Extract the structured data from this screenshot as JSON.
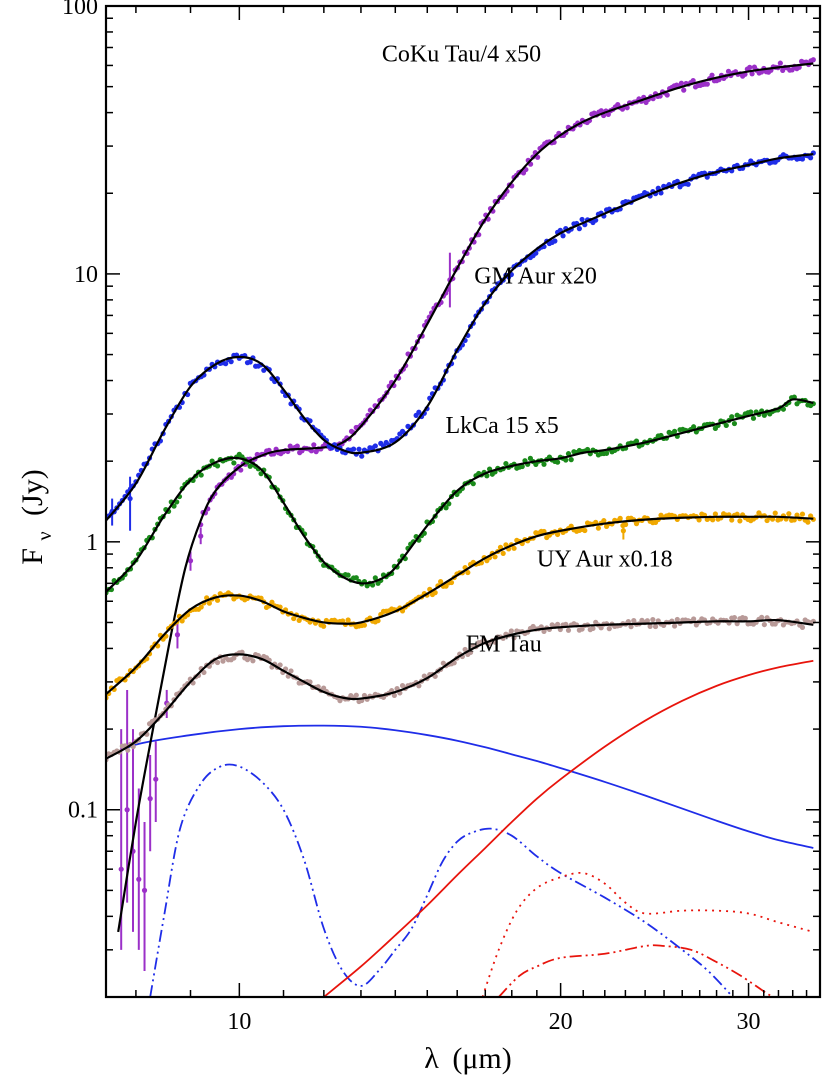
{
  "chart_data": {
    "type": "line",
    "xscale": "log",
    "yscale": "log",
    "xlim": [
      7.5,
      35
    ],
    "ylim": [
      0.02,
      100
    ],
    "xlabel": {
      "symbol": "λ",
      "unit": "(μm)"
    },
    "ylabel": {
      "symbol": "F",
      "subscript": "ν",
      "unit": "(Jy)"
    },
    "x_ticks": [
      {
        "value": 10,
        "label": "10"
      },
      {
        "value": 20,
        "label": "20"
      },
      {
        "value": 30,
        "label": "30"
      }
    ],
    "y_ticks": [
      {
        "value": 0.1,
        "label": "0.1"
      },
      {
        "value": 1,
        "label": "1"
      },
      {
        "value": 10,
        "label": "10"
      },
      {
        "value": 100,
        "label": "100"
      }
    ],
    "annotations": [
      {
        "text": "CoKu Tau/4 x50",
        "x": 13.6,
        "y": 62
      },
      {
        "text": "GM Aur x20",
        "x": 16.6,
        "y": 9.2
      },
      {
        "text": "LkCa 15 x5",
        "x": 15.6,
        "y": 2.55
      },
      {
        "text": "UY Aur x0.18",
        "x": 19.0,
        "y": 0.81
      },
      {
        "text": "FM Tau",
        "x": 16.3,
        "y": 0.39
      }
    ],
    "series": [
      {
        "name": "CoKu Tau/4 x50",
        "color": "#9b30c8",
        "model": [
          [
            7.7,
            0.035
          ],
          [
            8.0,
            0.09
          ],
          [
            8.3,
            0.2
          ],
          [
            8.6,
            0.42
          ],
          [
            8.9,
            0.8
          ],
          [
            9.2,
            1.2
          ],
          [
            9.5,
            1.55
          ],
          [
            10.0,
            1.9
          ],
          [
            10.5,
            2.1
          ],
          [
            11.0,
            2.2
          ],
          [
            12.0,
            2.25
          ],
          [
            12.5,
            2.35
          ],
          [
            13.0,
            2.7
          ],
          [
            14.0,
            4.0
          ],
          [
            15.0,
            6.5
          ],
          [
            16.0,
            10.5
          ],
          [
            17.0,
            16
          ],
          [
            18.0,
            22
          ],
          [
            19.0,
            28
          ],
          [
            20.0,
            33
          ],
          [
            21.0,
            37
          ],
          [
            22.0,
            40
          ],
          [
            24.0,
            45
          ],
          [
            26.0,
            50
          ],
          [
            28.0,
            54
          ],
          [
            30.0,
            57
          ],
          [
            32.0,
            59
          ],
          [
            34.5,
            61
          ]
        ],
        "errorbars": [
          [
            7.75,
            0.06,
            0.03,
            0.2
          ],
          [
            7.85,
            0.1,
            0.045,
            0.28
          ],
          [
            7.95,
            0.07,
            0.035,
            0.2
          ],
          [
            8.05,
            0.055,
            0.03,
            0.12
          ],
          [
            8.15,
            0.05,
            0.025,
            0.09
          ],
          [
            8.25,
            0.11,
            0.07,
            0.16
          ],
          [
            8.35,
            0.13,
            0.09,
            0.18
          ],
          [
            8.55,
            0.25,
            0.22,
            0.28
          ],
          [
            8.75,
            0.45,
            0.4,
            0.5
          ],
          [
            9.0,
            0.85,
            0.78,
            0.92
          ],
          [
            9.2,
            1.05,
            0.98,
            1.13
          ],
          [
            15.75,
            9.5,
            7.5,
            12.0
          ]
        ]
      },
      {
        "name": "GM Aur x20",
        "color": "#1f2de8",
        "model": [
          [
            7.5,
            1.2
          ],
          [
            8.0,
            1.65
          ],
          [
            8.5,
            2.6
          ],
          [
            9.0,
            3.8
          ],
          [
            9.5,
            4.6
          ],
          [
            10.0,
            4.9
          ],
          [
            10.5,
            4.6
          ],
          [
            11.0,
            3.7
          ],
          [
            11.5,
            2.9
          ],
          [
            12.0,
            2.4
          ],
          [
            12.5,
            2.2
          ],
          [
            13.0,
            2.15
          ],
          [
            14.0,
            2.35
          ],
          [
            15.0,
            3.2
          ],
          [
            16.0,
            5.2
          ],
          [
            17.0,
            7.8
          ],
          [
            18.0,
            10.3
          ],
          [
            19.0,
            12.4
          ],
          [
            20.0,
            14.2
          ],
          [
            21.0,
            15.5
          ],
          [
            22.0,
            16.8
          ],
          [
            24.0,
            19.5
          ],
          [
            26.0,
            22
          ],
          [
            28.0,
            24
          ],
          [
            30.0,
            25.5
          ],
          [
            32.0,
            27
          ],
          [
            34.5,
            28
          ]
        ],
        "errorbars": [
          [
            7.6,
            1.3,
            1.15,
            1.45
          ],
          [
            7.9,
            1.45,
            1.1,
            1.75
          ]
        ]
      },
      {
        "name": "LkCa 15 x5",
        "color": "#1a8a1a",
        "model": [
          [
            7.5,
            0.65
          ],
          [
            8.0,
            0.85
          ],
          [
            8.5,
            1.25
          ],
          [
            9.0,
            1.7
          ],
          [
            9.5,
            1.98
          ],
          [
            10.0,
            2.05
          ],
          [
            10.5,
            1.85
          ],
          [
            11.0,
            1.4
          ],
          [
            11.5,
            1.05
          ],
          [
            12.0,
            0.84
          ],
          [
            12.5,
            0.74
          ],
          [
            13.0,
            0.7
          ],
          [
            13.5,
            0.72
          ],
          [
            14.0,
            0.8
          ],
          [
            15.0,
            1.15
          ],
          [
            16.0,
            1.55
          ],
          [
            17.0,
            1.8
          ],
          [
            18.0,
            1.92
          ],
          [
            19.0,
            2.0
          ],
          [
            20.0,
            2.05
          ],
          [
            21.0,
            2.15
          ],
          [
            22.0,
            2.2
          ],
          [
            24.0,
            2.35
          ],
          [
            26.0,
            2.55
          ],
          [
            28.0,
            2.75
          ],
          [
            30.0,
            2.95
          ],
          [
            32.0,
            3.15
          ],
          [
            33.0,
            3.4
          ],
          [
            34.5,
            3.3
          ]
        ],
        "errorbars": []
      },
      {
        "name": "UY Aur x0.18",
        "color": "#f0a800",
        "model": [
          [
            7.5,
            0.27
          ],
          [
            8.0,
            0.34
          ],
          [
            8.5,
            0.45
          ],
          [
            9.0,
            0.56
          ],
          [
            9.5,
            0.62
          ],
          [
            10.0,
            0.63
          ],
          [
            10.5,
            0.6
          ],
          [
            11.0,
            0.55
          ],
          [
            11.5,
            0.52
          ],
          [
            12.0,
            0.5
          ],
          [
            12.5,
            0.495
          ],
          [
            13.0,
            0.5
          ],
          [
            14.0,
            0.55
          ],
          [
            15.0,
            0.64
          ],
          [
            16.0,
            0.75
          ],
          [
            17.0,
            0.87
          ],
          [
            18.0,
            0.97
          ],
          [
            19.0,
            1.05
          ],
          [
            20.0,
            1.1
          ],
          [
            22.0,
            1.17
          ],
          [
            24.0,
            1.21
          ],
          [
            26.0,
            1.23
          ],
          [
            28.0,
            1.24
          ],
          [
            30.0,
            1.24
          ],
          [
            32.0,
            1.24
          ],
          [
            34.5,
            1.22
          ]
        ],
        "errorbars": [
          [
            22.9,
            1.1,
            1.02,
            1.2
          ]
        ]
      },
      {
        "name": "FM Tau",
        "color": "#b89a98",
        "model": [
          [
            7.5,
            0.155
          ],
          [
            8.0,
            0.18
          ],
          [
            8.5,
            0.23
          ],
          [
            9.0,
            0.3
          ],
          [
            9.5,
            0.365
          ],
          [
            10.0,
            0.38
          ],
          [
            10.5,
            0.365
          ],
          [
            11.0,
            0.33
          ],
          [
            11.5,
            0.3
          ],
          [
            12.0,
            0.275
          ],
          [
            12.5,
            0.262
          ],
          [
            13.0,
            0.26
          ],
          [
            14.0,
            0.275
          ],
          [
            15.0,
            0.31
          ],
          [
            16.0,
            0.37
          ],
          [
            17.0,
            0.42
          ],
          [
            18.0,
            0.45
          ],
          [
            19.0,
            0.47
          ],
          [
            20.0,
            0.48
          ],
          [
            22.0,
            0.49
          ],
          [
            24.0,
            0.495
          ],
          [
            26.0,
            0.5
          ],
          [
            28.0,
            0.505
          ],
          [
            30.0,
            0.505
          ],
          [
            32.0,
            0.51
          ],
          [
            34.5,
            0.49
          ]
        ],
        "errorbars": []
      }
    ],
    "components": [
      {
        "name": "blue-solid",
        "color": "#1f2de8",
        "dash": "solid",
        "points": [
          [
            7.5,
            0.155
          ],
          [
            8.0,
            0.175
          ],
          [
            9.0,
            0.19
          ],
          [
            10.0,
            0.2
          ],
          [
            11.0,
            0.205
          ],
          [
            12.0,
            0.206
          ],
          [
            13.0,
            0.204
          ],
          [
            14.0,
            0.198
          ],
          [
            15.0,
            0.19
          ],
          [
            16.0,
            0.181
          ],
          [
            17.0,
            0.171
          ],
          [
            18.0,
            0.161
          ],
          [
            19.0,
            0.152
          ],
          [
            20.0,
            0.143
          ],
          [
            22.0,
            0.127
          ],
          [
            24.0,
            0.113
          ],
          [
            26.0,
            0.101
          ],
          [
            28.0,
            0.091
          ],
          [
            30.0,
            0.083
          ],
          [
            32.0,
            0.077
          ],
          [
            34.5,
            0.072
          ]
        ]
      },
      {
        "name": "blue-dash-dot",
        "color": "#1f2de8",
        "dash": "dashdot",
        "points": [
          [
            8.25,
            0.02
          ],
          [
            8.5,
            0.04
          ],
          [
            8.8,
            0.085
          ],
          [
            9.2,
            0.125
          ],
          [
            9.6,
            0.145
          ],
          [
            10.0,
            0.145
          ],
          [
            10.5,
            0.127
          ],
          [
            11.0,
            0.1
          ],
          [
            11.5,
            0.065
          ],
          [
            12.0,
            0.036
          ],
          [
            12.5,
            0.025
          ],
          [
            13.0,
            0.022
          ],
          [
            13.5,
            0.025
          ],
          [
            14.0,
            0.03
          ],
          [
            14.5,
            0.036
          ],
          [
            15.0,
            0.048
          ],
          [
            15.5,
            0.064
          ],
          [
            16.0,
            0.076
          ],
          [
            16.5,
            0.082
          ],
          [
            17.2,
            0.085
          ],
          [
            18.0,
            0.08
          ],
          [
            19.0,
            0.067
          ],
          [
            20.0,
            0.058
          ],
          [
            22.0,
            0.047
          ],
          [
            24.0,
            0.038
          ],
          [
            26.0,
            0.03
          ],
          [
            27.5,
            0.025
          ],
          [
            29.0,
            0.02
          ]
        ]
      },
      {
        "name": "red-solid",
        "color": "#e8140c",
        "dash": "solid",
        "points": [
          [
            12.0,
            0.02
          ],
          [
            13.0,
            0.026
          ],
          [
            14.0,
            0.034
          ],
          [
            15.0,
            0.044
          ],
          [
            16.0,
            0.057
          ],
          [
            17.0,
            0.072
          ],
          [
            18.0,
            0.09
          ],
          [
            19.0,
            0.11
          ],
          [
            20.0,
            0.13
          ],
          [
            22.0,
            0.172
          ],
          [
            24.0,
            0.215
          ],
          [
            26.0,
            0.255
          ],
          [
            28.0,
            0.29
          ],
          [
            30.0,
            0.318
          ],
          [
            32.0,
            0.34
          ],
          [
            34.5,
            0.36
          ]
        ]
      },
      {
        "name": "red-dotted",
        "color": "#e8140c",
        "dash": "dotted",
        "points": [
          [
            16.9,
            0.02
          ],
          [
            17.5,
            0.03
          ],
          [
            18.2,
            0.042
          ],
          [
            19.0,
            0.051
          ],
          [
            20.0,
            0.056
          ],
          [
            21.0,
            0.058
          ],
          [
            22.0,
            0.053
          ],
          [
            23.0,
            0.045
          ],
          [
            24.0,
            0.041
          ],
          [
            26.0,
            0.042
          ],
          [
            28.0,
            0.042
          ],
          [
            30.0,
            0.041
          ],
          [
            32.0,
            0.038
          ],
          [
            34.5,
            0.035
          ]
        ]
      },
      {
        "name": "red-dash-dot",
        "color": "#e8140c",
        "dash": "dashdot",
        "points": [
          [
            17.5,
            0.02
          ],
          [
            18.3,
            0.024
          ],
          [
            19.0,
            0.026
          ],
          [
            20.0,
            0.028
          ],
          [
            22.0,
            0.029
          ],
          [
            24.0,
            0.031
          ],
          [
            25.0,
            0.031
          ],
          [
            26.5,
            0.03
          ],
          [
            28.0,
            0.027
          ],
          [
            29.5,
            0.024
          ],
          [
            31.0,
            0.021
          ],
          [
            31.6,
            0.02
          ]
        ]
      }
    ]
  }
}
